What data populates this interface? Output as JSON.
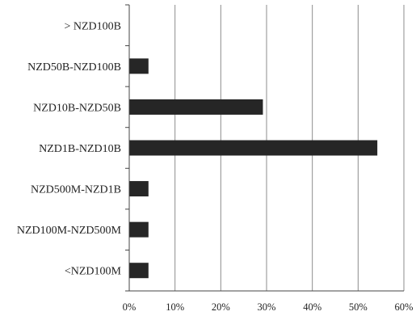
{
  "chart_data": {
    "type": "bar",
    "orientation": "horizontal",
    "categories": [
      "> NZD100B",
      "NZD50B-NZD100B",
      "NZD10B-NZD50B",
      "NZD1B-NZD10B",
      "NZD500M-NZD1B",
      "NZD100M-NZD500M",
      "<NZD100M"
    ],
    "values": [
      0,
      4.2,
      29.2,
      54.2,
      4.2,
      4.2,
      4.2
    ],
    "xlim": [
      0,
      60
    ],
    "x_ticks": [
      "0%",
      "10%",
      "20%",
      "30%",
      "40%",
      "50%",
      "60%"
    ],
    "x_tick_values": [
      0,
      10,
      20,
      30,
      40,
      50,
      60
    ],
    "grid": "vertical",
    "legend": "none",
    "title": "",
    "xlabel": "",
    "ylabel": "",
    "bar_color": "#262626",
    "grid_color": "#8c8c8c"
  }
}
